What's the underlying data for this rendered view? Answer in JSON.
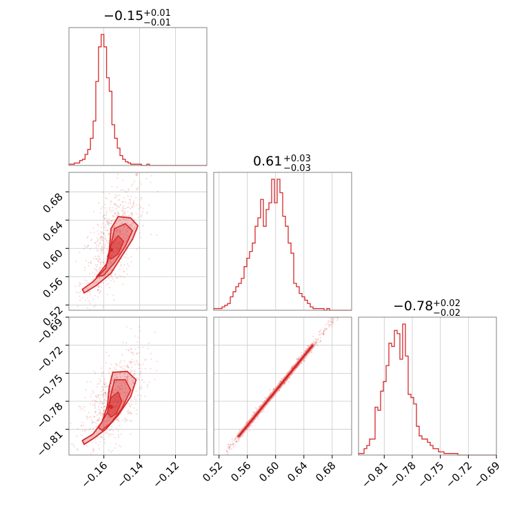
{
  "chart_data": {
    "type": "corner",
    "color": "#d62728",
    "params": [
      {
        "title_value": "−0.15",
        "title_plus": "+0.01",
        "title_minus": "−0.01",
        "range": [
          -0.1795,
          -0.1025
        ],
        "ticks": [
          -0.16,
          -0.14,
          -0.12
        ],
        "tick_labels": [
          "−0.16",
          "−0.14",
          "−0.12"
        ]
      },
      {
        "title_value": "0.61",
        "title_plus": "+0.03",
        "title_minus": "−0.03",
        "range": [
          0.5125,
          0.7075
        ],
        "ticks": [
          0.52,
          0.56,
          0.6,
          0.64,
          0.68
        ],
        "tick_labels": [
          "0.52",
          "0.56",
          "0.60",
          "0.64",
          "0.68"
        ]
      },
      {
        "title_value": "−0.78",
        "title_plus": "+0.02",
        "title_minus": "−0.02",
        "range": [
          -0.8375,
          -0.69
        ],
        "ticks": [
          -0.81,
          -0.78,
          -0.75,
          -0.72,
          -0.69
        ],
        "tick_labels": [
          "−0.81",
          "−0.78",
          "−0.75",
          "−0.72",
          "−0.69"
        ]
      }
    ],
    "histograms": [
      {
        "param": 0,
        "x_start": -0.1795,
        "bin_width": 0.0015,
        "counts": [
          1,
          1,
          2,
          2,
          4,
          5,
          9,
          13,
          22,
          36,
          68,
          96,
          106,
          96,
          71,
          60,
          33,
          22,
          14,
          8,
          5,
          3,
          2,
          1,
          1,
          1,
          1,
          0,
          0,
          1,
          0,
          0,
          0,
          0,
          0,
          0,
          0,
          0,
          0,
          0,
          0,
          0,
          0,
          0,
          0,
          0,
          0,
          0,
          0,
          0,
          0,
          0
        ]
      },
      {
        "param": 1,
        "x_start": 0.5125,
        "bin_width": 0.0039,
        "counts": [
          1,
          1,
          1,
          2,
          3,
          4,
          8,
          11,
          14,
          16,
          19,
          26,
          31,
          35,
          40,
          50,
          55,
          66,
          50,
          60,
          64,
          78,
          64,
          78,
          70,
          56,
          50,
          40,
          34,
          16,
          14,
          10,
          8,
          6,
          4,
          2,
          1,
          1,
          1,
          1,
          0,
          1,
          0,
          0,
          0,
          0,
          0,
          0,
          0,
          0
        ]
      },
      {
        "param": 2,
        "x_start": -0.8375,
        "bin_width": 0.00295,
        "counts": [
          1,
          1,
          4,
          6,
          10,
          10,
          30,
          28,
          40,
          46,
          56,
          70,
          68,
          78,
          76,
          60,
          82,
          62,
          38,
          36,
          32,
          18,
          12,
          10,
          10,
          8,
          6,
          4,
          4,
          2,
          2,
          1,
          1,
          1,
          1,
          1,
          0,
          0,
          0,
          0,
          0,
          0,
          0,
          0,
          0,
          0,
          0,
          0,
          0,
          0
        ]
      }
    ],
    "scatter_pairs": [
      {
        "x_param": 0,
        "y_param": 1
      },
      {
        "x_param": 0,
        "y_param": 2
      },
      {
        "x_param": 1,
        "y_param": 2
      }
    ]
  }
}
